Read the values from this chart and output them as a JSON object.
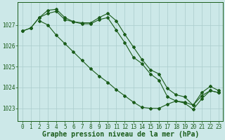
{
  "title": "Graphe pression niveau de la mer (hPa)",
  "background_color": "#cce8e8",
  "grid_color": "#aacccc",
  "line_color": "#1a5c1a",
  "xlim": [
    -0.5,
    23.5
  ],
  "ylim": [
    1022.4,
    1028.1
  ],
  "yticks": [
    1023,
    1024,
    1025,
    1026,
    1027
  ],
  "xticks": [
    0,
    1,
    2,
    3,
    4,
    5,
    6,
    7,
    8,
    9,
    10,
    11,
    12,
    13,
    14,
    15,
    16,
    17,
    18,
    19,
    20,
    21,
    22,
    23
  ],
  "line1_x": [
    0,
    1,
    2,
    3,
    4,
    5,
    6,
    7,
    8,
    9,
    10,
    11,
    12,
    13,
    14,
    15,
    16,
    17,
    18,
    19,
    20,
    21,
    22,
    23
  ],
  "line1_y": [
    1026.7,
    1026.85,
    1027.35,
    1027.55,
    1027.65,
    1027.25,
    1027.15,
    1027.05,
    1027.05,
    1027.25,
    1027.35,
    1026.75,
    1026.15,
    1025.45,
    1025.15,
    1024.65,
    1024.35,
    1023.55,
    1023.35,
    1023.25,
    1022.95,
    1023.45,
    1023.85,
    1023.75
  ],
  "line2_x": [
    0,
    1,
    2,
    3,
    4,
    5,
    6,
    7,
    8,
    9,
    10,
    11,
    12,
    13,
    14,
    15,
    16,
    17,
    18,
    19,
    20,
    21,
    22,
    23
  ],
  "line2_y": [
    1026.7,
    1026.85,
    1027.35,
    1027.7,
    1027.75,
    1027.35,
    1027.15,
    1027.1,
    1027.1,
    1027.35,
    1027.55,
    1027.2,
    1026.55,
    1025.95,
    1025.35,
    1024.85,
    1024.65,
    1023.95,
    1023.65,
    1023.55,
    1023.15,
    1023.75,
    1024.05,
    1023.85
  ],
  "line3_x": [
    2,
    3,
    4,
    5,
    6,
    7,
    8,
    9,
    10,
    11,
    12,
    13,
    14,
    15,
    16,
    17,
    18,
    19,
    20,
    21,
    22,
    23
  ],
  "line3_y": [
    1027.2,
    1027.0,
    1026.5,
    1026.1,
    1025.7,
    1025.3,
    1024.9,
    1024.55,
    1024.25,
    1023.9,
    1023.6,
    1023.3,
    1023.05,
    1023.0,
    1023.0,
    1023.2,
    1023.35,
    1023.3,
    1023.15,
    1023.6,
    1023.85,
    1023.75
  ],
  "title_fontsize": 7,
  "tick_fontsize": 5.5
}
